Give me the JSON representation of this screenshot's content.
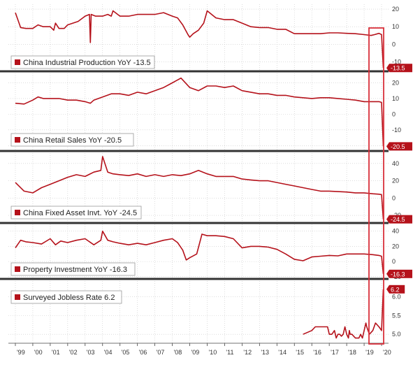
{
  "chart_data": [
    {
      "type": "line",
      "legend": "China Industrial Production YoY -13.5",
      "last_label": "-13.5",
      "yticks": [
        "20",
        "10",
        "0",
        "-10"
      ],
      "yrange": [
        -15,
        22
      ],
      "series_color": "#b5121b",
      "x": [
        1999.0,
        1999.3,
        1999.6,
        2000.0,
        2000.3,
        2000.6,
        2001.0,
        2001.2,
        2001.3,
        2001.5,
        2001.8,
        2002.0,
        2002.3,
        2002.6,
        2003.0,
        2003.25,
        2003.3,
        2003.35,
        2003.6,
        2004.0,
        2004.3,
        2004.5,
        2004.6,
        2005.0,
        2005.5,
        2006.0,
        2006.5,
        2007.0,
        2007.5,
        2008.0,
        2008.3,
        2008.6,
        2008.9,
        2009.0,
        2009.2,
        2009.5,
        2009.8,
        2010.0,
        2010.5,
        2011.0,
        2011.5,
        2012.0,
        2012.5,
        2013.0,
        2013.5,
        2014.0,
        2014.5,
        2015.0,
        2015.5,
        2016.0,
        2016.5,
        2017.0,
        2017.5,
        2018.0,
        2018.5,
        2019.0,
        2019.4,
        2019.6,
        2019.85,
        2020.0,
        2020.1
      ],
      "values": [
        18,
        9.5,
        9,
        9,
        11,
        10,
        10,
        8,
        12,
        9,
        9,
        11,
        12,
        13,
        16,
        17,
        1,
        17,
        16,
        16,
        17,
        16,
        19,
        16,
        16,
        17,
        17,
        17,
        18,
        16,
        15,
        11,
        5.5,
        4,
        6,
        8,
        12,
        19,
        15,
        14,
        14,
        12,
        10,
        9.5,
        9.5,
        8.5,
        8.5,
        6,
        6,
        6,
        6,
        6.5,
        6.5,
        6.2,
        6,
        5.5,
        5,
        5.5,
        6.2,
        5.5,
        -13.5
      ]
    },
    {
      "type": "line",
      "legend": "China Retail Sales YoY -20.5",
      "last_label": "-20.5",
      "yticks": [
        "20",
        "10",
        "0",
        "-10",
        "-20"
      ],
      "yrange": [
        -23,
        26
      ],
      "series_color": "#b5121b",
      "x": [
        1999.0,
        1999.5,
        2000.0,
        2000.3,
        2000.6,
        2001.0,
        2001.5,
        2002.0,
        2002.5,
        2003.0,
        2003.3,
        2003.5,
        2004.0,
        2004.5,
        2005.0,
        2005.5,
        2006.0,
        2006.5,
        2007.0,
        2007.5,
        2008.0,
        2008.5,
        2009.0,
        2009.5,
        2010.0,
        2010.5,
        2011.0,
        2011.5,
        2012.0,
        2012.5,
        2013.0,
        2013.5,
        2014.0,
        2014.5,
        2015.0,
        2015.5,
        2016.0,
        2016.5,
        2017.0,
        2017.5,
        2018.0,
        2018.5,
        2019.0,
        2019.5,
        2019.85,
        2020.0,
        2020.1
      ],
      "values": [
        7,
        6.5,
        9,
        11,
        10,
        10,
        10,
        9,
        9,
        8,
        7,
        9,
        11,
        13,
        13,
        12,
        14,
        13,
        15,
        17,
        20,
        23,
        17,
        15,
        18,
        18,
        17,
        18,
        15,
        14,
        13,
        13,
        12,
        12,
        11,
        10.5,
        10,
        10.5,
        10.5,
        10,
        9.5,
        9,
        8,
        8,
        8,
        7.5,
        -20.5
      ]
    },
    {
      "type": "line",
      "legend": "China Fixed Asset Invt. YoY -24.5",
      "last_label": "-24.5",
      "yticks": [
        "40",
        "20",
        "0",
        "-20"
      ],
      "yrange": [
        -28,
        52
      ],
      "series_color": "#b5121b",
      "x": [
        1999.0,
        1999.5,
        2000.0,
        2000.5,
        2001.0,
        2001.5,
        2002.0,
        2002.5,
        2003.0,
        2003.5,
        2003.9,
        2004.0,
        2004.3,
        2004.6,
        2005.0,
        2005.5,
        2006.0,
        2006.5,
        2007.0,
        2007.5,
        2008.0,
        2008.5,
        2009.0,
        2009.5,
        2010.0,
        2010.5,
        2011.0,
        2011.5,
        2012.0,
        2012.5,
        2013.0,
        2013.5,
        2014.0,
        2014.5,
        2015.0,
        2015.5,
        2016.0,
        2016.5,
        2017.0,
        2017.5,
        2018.0,
        2018.5,
        2019.0,
        2019.5,
        2019.85,
        2020.0,
        2020.1
      ],
      "values": [
        18,
        8,
        6,
        12,
        16,
        20,
        24,
        27,
        25,
        30,
        32,
        48,
        30,
        28,
        27,
        26,
        28,
        25,
        27,
        25,
        27,
        26,
        28,
        32,
        28,
        25,
        25,
        25,
        22,
        21,
        20,
        20,
        18,
        16,
        14,
        12,
        10,
        8,
        8,
        7.5,
        7,
        6,
        6,
        5,
        4.5,
        4,
        -24.5
      ]
    },
    {
      "type": "line",
      "legend": "Property Investment YoY -16.3",
      "last_label": "-16.3",
      "yticks": [
        "40",
        "20",
        "0",
        "-20"
      ],
      "yrange": [
        -22,
        48
      ],
      "series_color": "#b5121b",
      "x": [
        1999.0,
        1999.3,
        1999.6,
        2000.0,
        2000.5,
        2001.0,
        2001.3,
        2001.6,
        2002.0,
        2002.5,
        2003.0,
        2003.5,
        2003.9,
        2004.0,
        2004.3,
        2004.6,
        2005.0,
        2005.5,
        2006.0,
        2006.5,
        2007.0,
        2007.5,
        2008.0,
        2008.3,
        2008.6,
        2008.8,
        2009.0,
        2009.4,
        2009.7,
        2010.0,
        2010.5,
        2011.0,
        2011.5,
        2012.0,
        2012.5,
        2013.0,
        2013.5,
        2014.0,
        2014.5,
        2015.0,
        2015.5,
        2016.0,
        2016.5,
        2017.0,
        2017.5,
        2018.0,
        2018.5,
        2019.0,
        2019.5,
        2019.85,
        2020.0,
        2020.1
      ],
      "values": [
        18,
        28,
        26,
        25,
        23,
        30,
        22,
        27,
        25,
        28,
        30,
        22,
        28,
        40,
        28,
        26,
        24,
        22,
        24,
        22,
        25,
        28,
        30,
        25,
        15,
        2,
        5,
        10,
        36,
        34,
        34,
        33,
        30,
        18,
        20,
        20,
        19,
        16,
        10,
        3,
        1,
        6,
        7,
        8,
        7.5,
        10,
        10,
        10,
        9,
        8,
        7,
        -16.3
      ]
    },
    {
      "type": "line",
      "legend": "Surveyed Jobless Rate 6.2",
      "last_label": "6.2",
      "yticks": [
        "6.0",
        "5.5",
        "5.0"
      ],
      "yrange": [
        4.78,
        6.42
      ],
      "series_color": "#b5121b",
      "x": [
        2015.5,
        2016.0,
        2016.2,
        2016.4,
        2016.6,
        2016.75,
        2016.9,
        2017.0,
        2017.15,
        2017.3,
        2017.4,
        2017.5,
        2017.6,
        2017.7,
        2017.8,
        2017.9,
        2018.0,
        2018.1,
        2018.15,
        2018.2,
        2018.3,
        2018.4,
        2018.5,
        2018.6,
        2018.7,
        2018.8,
        2018.85,
        2018.9,
        2019.0,
        2019.1,
        2019.15,
        2019.3,
        2019.5,
        2019.65,
        2019.85,
        2020.0,
        2020.1
      ],
      "values": [
        5.0,
        5.1,
        5.2,
        5.2,
        5.2,
        5.2,
        5.2,
        5.0,
        5.0,
        5.1,
        4.9,
        5.0,
        5.0,
        4.95,
        5.0,
        5.2,
        5.0,
        4.9,
        5.1,
        5.0,
        5.0,
        4.95,
        4.9,
        4.9,
        4.9,
        5.0,
        4.95,
        4.9,
        5.1,
        5.3,
        5.2,
        5.0,
        5.1,
        5.3,
        5.2,
        5.1,
        6.2
      ]
    }
  ],
  "xaxis": {
    "range": [
      1998.6,
      2020.4
    ],
    "ticks": [
      "'99",
      "'00",
      "'01",
      "'02",
      "'03",
      "'04",
      "'05",
      "'06",
      "'07",
      "'08",
      "'09",
      "'10",
      "'11",
      "'12",
      "'13",
      "'14",
      "'15",
      "'16",
      "'17",
      "'18",
      "'19",
      "'20"
    ]
  },
  "colors": {
    "series": "#b5121b",
    "highlight_box": "#d9303a",
    "grid": "#c7c7c7",
    "panel_divider": "#333333"
  }
}
